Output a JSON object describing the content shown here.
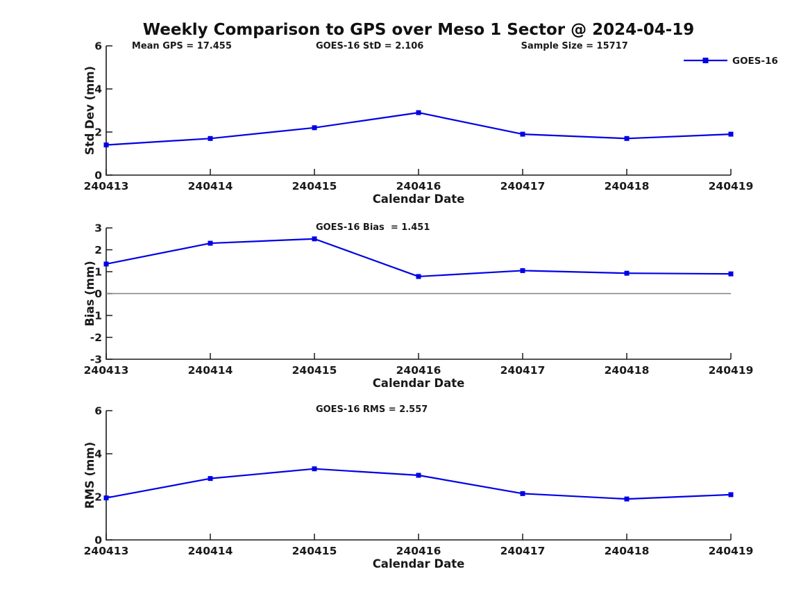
{
  "page": {
    "title": "Weekly Comparison to GPS over Meso 1 Sector @ 2024-04-19"
  },
  "colors": {
    "series": "#0000E6",
    "zero_line": "#808080",
    "axis": "#1a1a1a",
    "text": "#1a1a1a"
  },
  "legend": {
    "label": "GOES-16",
    "marker": "square",
    "position": "top-right"
  },
  "chart_data": [
    {
      "type": "line",
      "categories": [
        "240413",
        "240414",
        "240415",
        "240416",
        "240417",
        "240418",
        "240419"
      ],
      "series": [
        {
          "name": "GOES-16",
          "marker": "square",
          "values": [
            1.4,
            1.7,
            2.2,
            2.9,
            1.9,
            1.7,
            1.9
          ]
        }
      ],
      "title": "",
      "xlabel": "Calendar Date",
      "ylabel": "Std Dev (mm)",
      "ylim": [
        0,
        6
      ],
      "yticks": [
        0,
        2,
        4,
        6
      ],
      "grid": false,
      "legend_position": "top-right",
      "annotations": [
        "Mean GPS = 17.455",
        "GOES-16 StD = 2.106",
        "Sample Size = 15717"
      ]
    },
    {
      "type": "line",
      "categories": [
        "240413",
        "240414",
        "240415",
        "240416",
        "240417",
        "240418",
        "240419"
      ],
      "series": [
        {
          "name": "GOES-16",
          "marker": "square",
          "values": [
            1.35,
            2.3,
            2.5,
            0.78,
            1.05,
            0.93,
            0.9
          ]
        }
      ],
      "title": "",
      "xlabel": "Calendar Date",
      "ylabel": "Bias (mm)",
      "ylim": [
        -3,
        3
      ],
      "yticks": [
        3,
        2,
        1,
        0,
        -1,
        -2,
        -3
      ],
      "zero_line": true,
      "grid": false,
      "annotations": [
        "GOES-16 Bias  = 1.451"
      ]
    },
    {
      "type": "line",
      "categories": [
        "240413",
        "240414",
        "240415",
        "240416",
        "240417",
        "240418",
        "240419"
      ],
      "series": [
        {
          "name": "GOES-16",
          "marker": "square",
          "values": [
            1.95,
            2.85,
            3.3,
            3.0,
            2.15,
            1.9,
            2.1
          ]
        }
      ],
      "title": "",
      "xlabel": "Calendar Date",
      "ylabel": "RMS (mm)",
      "ylim": [
        0,
        6
      ],
      "yticks": [
        0,
        2,
        4,
        6
      ],
      "grid": false,
      "annotations": [
        "GOES-16 RMS = 2.557"
      ]
    }
  ]
}
